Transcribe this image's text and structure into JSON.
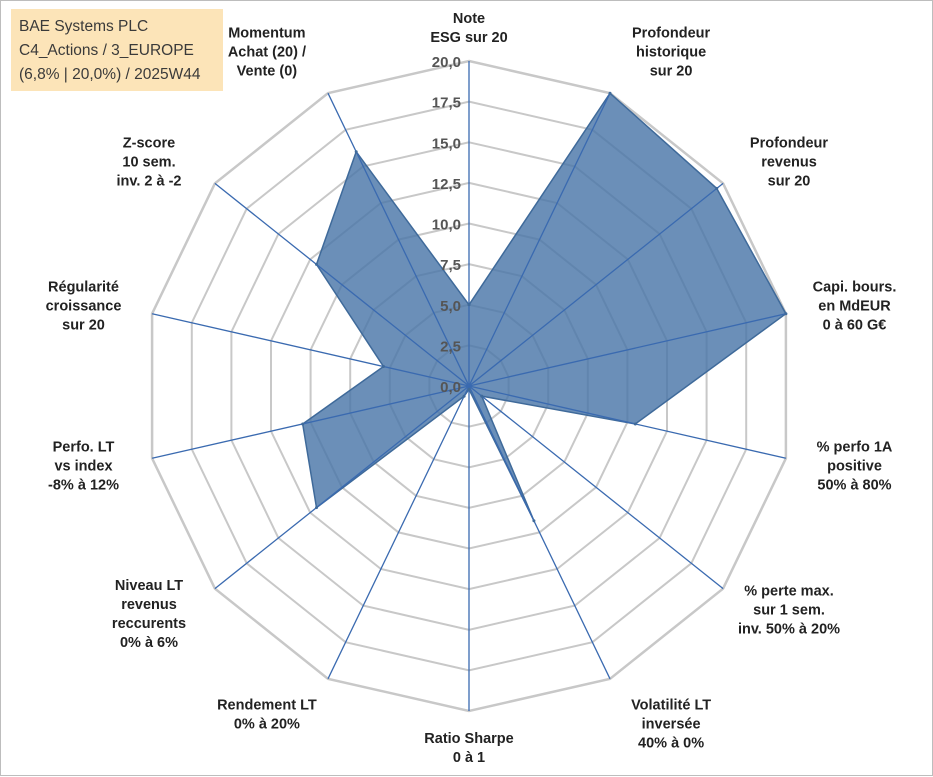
{
  "title_box": {
    "line1": "BAE Systems PLC",
    "line2": "C4_Actions / 3_EUROPE",
    "line3": "(6,8% | 20,0%) / 2025W44"
  },
  "chart_data": {
    "type": "radar",
    "rmax": 20,
    "ticks": [
      "0,0",
      "2,5",
      "5,0",
      "7,5",
      "10,0",
      "12,5",
      "15,0",
      "17,5",
      "20,0"
    ],
    "grid": true,
    "axes": [
      [
        "Note",
        "ESG sur 20"
      ],
      [
        "Profondeur",
        "historique",
        "sur 20"
      ],
      [
        "Profondeur",
        "revenus",
        "sur 20"
      ],
      [
        "Capi. bours.",
        "en MdEUR",
        "0 à 60 G€"
      ],
      [
        "% perfo 1A",
        "positive",
        "50% à 80%"
      ],
      [
        "% perte max.",
        "sur 1 sem.",
        "inv. 50% à 20%"
      ],
      [
        "Volatilité LT",
        "inversée",
        "40% à 0%"
      ],
      [
        "Ratio Sharpe",
        "0 à 1"
      ],
      [
        "Rendement LT",
        "0% à 20%"
      ],
      [
        "Niveau LT",
        "revenus",
        "reccurents",
        "0% à 6%"
      ],
      [
        "Perfo. LT",
        "vs index",
        "-8% à 12%"
      ],
      [
        "Régularité",
        "croissance",
        "sur 20"
      ],
      [
        "Z-score",
        "10 sem.",
        "inv. 2 à -2"
      ],
      [
        "Momentum",
        "Achat (20) /",
        "Vente (0)"
      ]
    ],
    "values": [
      5.0,
      20.0,
      19.5,
      20.0,
      10.5,
      1.0,
      9.2,
      0.2,
      0.7,
      12.0,
      10.5,
      5.4,
      12.0,
      16.0
    ],
    "colors": {
      "fill": "#4a76a8",
      "stroke": "#3f6a9a",
      "spoke": "#3a6ab0",
      "grid": "#c8c8c8"
    }
  }
}
